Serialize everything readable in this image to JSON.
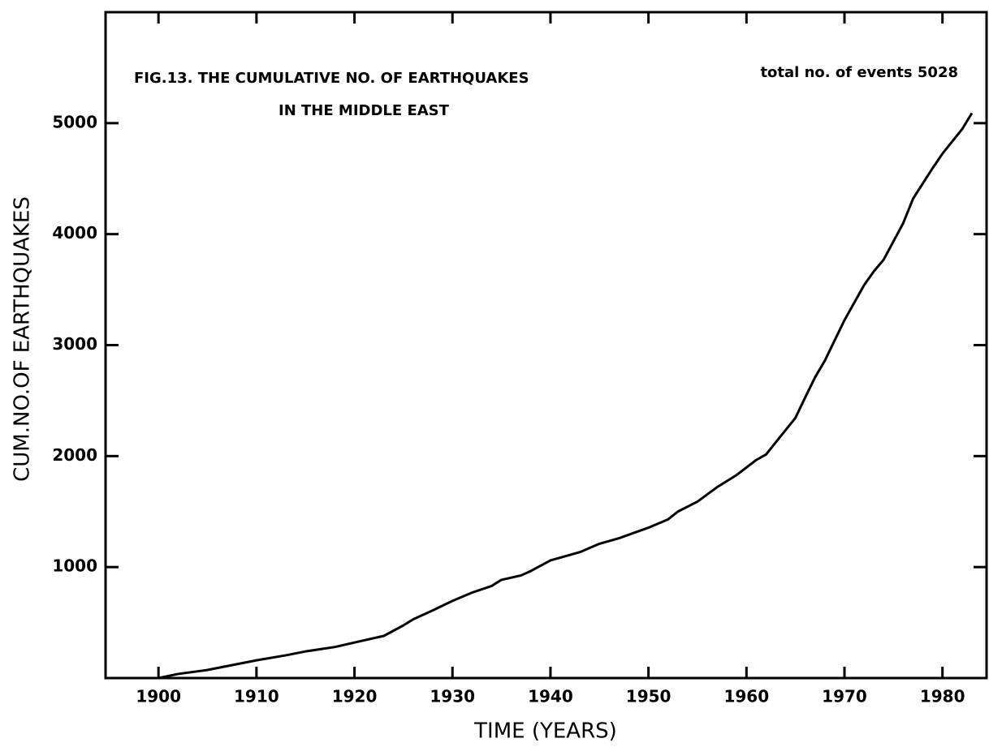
{
  "chart_data": {
    "type": "line",
    "title": "FIG.13. THE CUMULATIVE NO. OF EARTHQUAKES",
    "subtitle": "IN THE MIDDLE EAST",
    "annotation": "total no. of events 5028",
    "x_label": "TIME (YEARS)",
    "y_label": "CUM.NO.OF EARTHQUAKES",
    "xlim": [
      1894.6,
      1984.5
    ],
    "ylim": [
      0,
      6000
    ],
    "xticks": [
      1900,
      1910,
      1920,
      1930,
      1940,
      1950,
      1960,
      1970,
      1980
    ],
    "yticks": [
      1000,
      2000,
      3000,
      4000,
      5000
    ],
    "series": [
      {
        "color": "#000000",
        "x": [
          1900,
          1902,
          1905,
          1908,
          1910,
          1913,
          1915,
          1918,
          1920,
          1923,
          1925,
          1926,
          1928,
          1930,
          1932,
          1934,
          1935,
          1937,
          1938,
          1940,
          1943,
          1945,
          1947,
          1950,
          1952,
          1953,
          1955,
          1957,
          1959,
          1961,
          1962,
          1963,
          1964,
          1965,
          1966,
          1967,
          1968,
          1970,
          1972,
          1973,
          1974,
          1975,
          1976,
          1977,
          1979,
          1980,
          1982,
          1983
        ],
        "values": [
          0,
          37,
          73,
          125,
          160,
          205,
          240,
          280,
          320,
          380,
          475,
          530,
          610,
          695,
          770,
          830,
          885,
          925,
          965,
          1060,
          1135,
          1210,
          1260,
          1355,
          1430,
          1500,
          1590,
          1720,
          1830,
          1965,
          2015,
          2125,
          2235,
          2345,
          2530,
          2710,
          2860,
          3225,
          3540,
          3665,
          3770,
          3935,
          4100,
          4320,
          4595,
          4725,
          4945,
          5090
        ]
      }
    ]
  }
}
